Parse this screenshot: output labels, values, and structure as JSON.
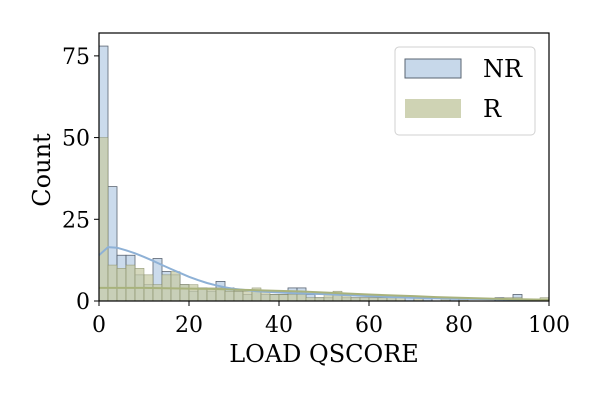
{
  "chart_data": {
    "type": "bar",
    "xlabel": "LOAD QSCORE",
    "ylabel": "Count",
    "xlim": [
      0,
      100
    ],
    "ylim": [
      0,
      82
    ],
    "xticks": [
      "0",
      "20",
      "40",
      "60",
      "80",
      "100"
    ],
    "xtick_values": [
      0,
      20,
      40,
      60,
      80,
      100
    ],
    "yticks": [
      "0",
      "25",
      "50",
      "75"
    ],
    "ytick_values": [
      0,
      25,
      50,
      75
    ],
    "grid": false,
    "legend_position": "top-right",
    "bin_width": 2,
    "bin_starts": [
      0,
      2,
      4,
      6,
      8,
      10,
      12,
      14,
      16,
      18,
      20,
      22,
      24,
      26,
      28,
      30,
      32,
      34,
      36,
      38,
      40,
      42,
      44,
      46,
      48,
      50,
      52,
      54,
      56,
      58,
      60,
      62,
      64,
      66,
      68,
      70,
      72,
      74,
      76,
      78,
      80,
      82,
      84,
      86,
      88,
      90,
      92,
      94,
      96,
      98
    ],
    "series": [
      {
        "name": "NR",
        "color": "#a9c3df",
        "values": [
          78,
          35,
          14,
          14,
          8,
          5,
          13,
          9,
          8,
          5,
          3,
          4,
          3,
          6,
          4,
          3,
          2,
          3,
          2,
          2,
          2,
          4,
          4,
          2,
          1,
          1,
          2,
          1,
          1,
          1,
          1,
          1,
          1,
          0,
          1,
          0,
          1,
          0,
          0,
          1,
          0,
          0,
          0,
          0,
          1,
          0,
          2,
          0,
          0,
          0
        ]
      },
      {
        "name": "R",
        "color": "#c7cba7",
        "values": [
          50,
          11,
          10,
          11,
          10,
          8,
          5,
          8,
          9,
          5,
          5,
          4,
          4,
          4,
          3,
          3,
          3,
          4,
          3,
          2,
          2,
          2,
          2,
          1,
          1,
          2,
          3,
          2,
          1,
          1,
          1,
          1,
          1,
          1,
          0,
          1,
          0,
          0,
          1,
          0,
          1,
          0,
          0,
          0,
          0,
          1,
          1,
          0,
          0,
          1
        ]
      }
    ],
    "kde": [
      {
        "name": "NR",
        "color": "#8eb1d6",
        "x": [
          0,
          2,
          4,
          6,
          8,
          10,
          12,
          14,
          16,
          18,
          20,
          22,
          24,
          26,
          28,
          30,
          35,
          40,
          45,
          50,
          55,
          60,
          65,
          70,
          75,
          80,
          85,
          90,
          95,
          100
        ],
        "y": [
          14,
          16.5,
          16.3,
          15.5,
          14.6,
          13.5,
          12.3,
          11,
          9.8,
          8.6,
          7.4,
          6.4,
          5.5,
          4.8,
          4.2,
          3.7,
          3,
          2.6,
          2.3,
          2.1,
          1.8,
          1.5,
          1.2,
          1,
          0.8,
          0.7,
          0.6,
          0.5,
          0.4,
          0.3
        ]
      },
      {
        "name": "R",
        "color": "#a8b27c",
        "x": [
          0,
          5,
          10,
          15,
          20,
          25,
          30,
          35,
          40,
          45,
          50,
          55,
          60,
          65,
          70,
          75,
          80,
          85,
          90,
          95,
          100
        ],
        "y": [
          4,
          4,
          4,
          3.9,
          3.8,
          3.7,
          3.5,
          3.3,
          3.1,
          2.9,
          2.6,
          2.3,
          2,
          1.7,
          1.5,
          1.2,
          1,
          0.8,
          0.6,
          0.5,
          0.4
        ]
      }
    ],
    "legend": [
      "NR",
      "R"
    ]
  }
}
